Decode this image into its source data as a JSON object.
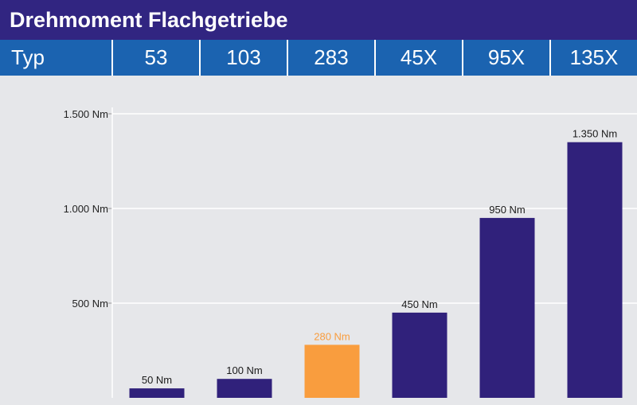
{
  "title": "Drehmoment Flachgetriebe",
  "type_row": {
    "label": "Typ",
    "types": [
      "53",
      "103",
      "283",
      "45X",
      "95X",
      "135X"
    ]
  },
  "colors": {
    "bar": "#30217b",
    "highlight": "#f99d3e",
    "title_bg": "#312581",
    "type_row_bg": "#1b63b0",
    "plot_bg": "#e6e7ea",
    "grid": "#ffffff"
  },
  "chart_data": {
    "type": "bar",
    "categories": [
      "53",
      "103",
      "283",
      "45X",
      "95X",
      "135X"
    ],
    "values": [
      50,
      100,
      280,
      450,
      950,
      1350
    ],
    "data_labels": [
      "50 Nm",
      "100 Nm",
      "280 Nm",
      "450 Nm",
      "950 Nm",
      "1.350 Nm"
    ],
    "highlight_index": 2,
    "title": "Drehmoment Flachgetriebe",
    "xlabel": "",
    "ylabel": "",
    "ylim": [
      0,
      1500
    ],
    "yticks": [
      500,
      1000,
      1500
    ],
    "ytick_labels": [
      "500 Nm",
      "1.000 Nm",
      "1.500 Nm"
    ],
    "grid": true
  }
}
